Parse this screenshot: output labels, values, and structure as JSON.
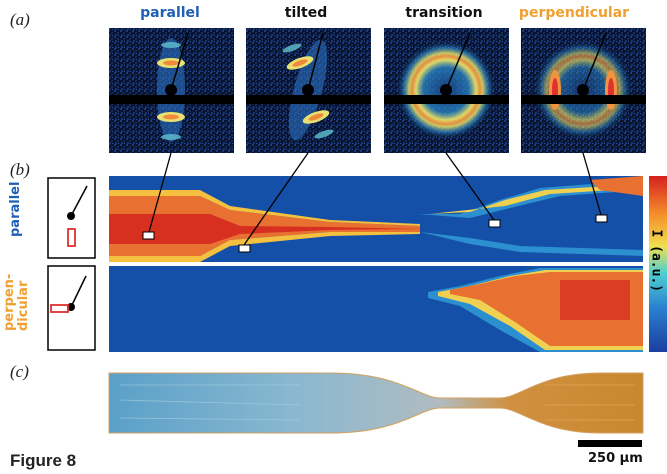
{
  "panel_labels": {
    "a": "(a)",
    "b": "(b)",
    "c": "(c)"
  },
  "patterns": [
    {
      "title": "parallel",
      "color": "#1f5fb5"
    },
    {
      "title": "tilted",
      "color": "#111111"
    },
    {
      "title": "transition",
      "color": "#111111"
    },
    {
      "title": "perpendicular",
      "color": "#f0a030"
    }
  ],
  "map_labels": {
    "parallel": "parallel",
    "perpendicular": "perpen-\ndicular"
  },
  "colorbar_label": "I (a.u.)",
  "scale_bar": "250 μm",
  "figure_caption": "Figure 8",
  "colors": {
    "parallel_blue": "#1f5fb5",
    "perpendicular_orange": "#f0a030",
    "map_background": "#1550a8"
  }
}
